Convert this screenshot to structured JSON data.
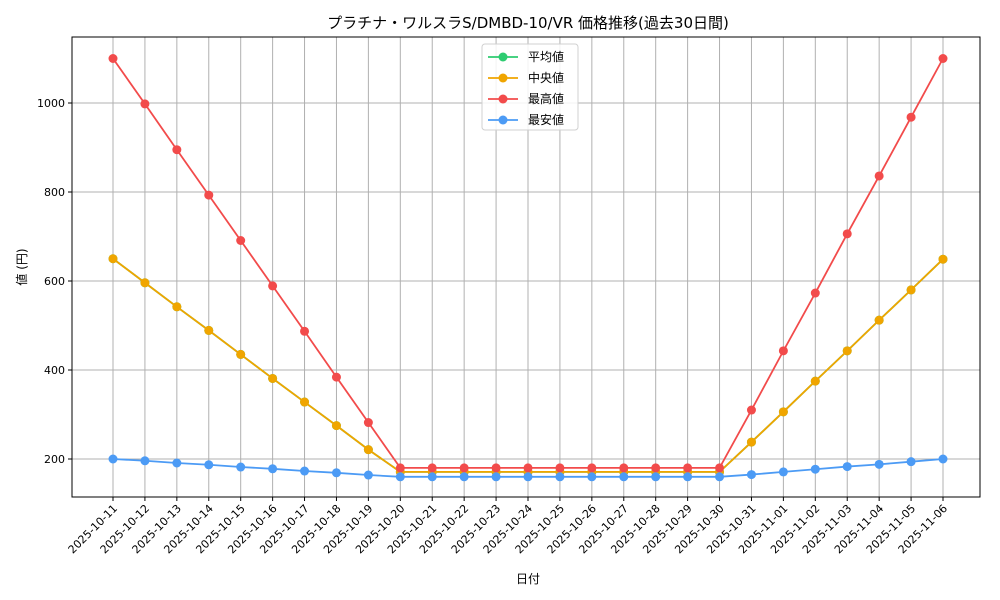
{
  "chart_data": {
    "type": "line",
    "title": "プラチナ・ワルスラS/DMBD-10/VR 価格推移(過去30日間)",
    "xlabel": "日付",
    "ylabel": "値 (円)",
    "ylim": [
      112,
      1145
    ],
    "yticks": [
      200,
      400,
      600,
      800,
      1000
    ],
    "grid": true,
    "legend_position": "upper center",
    "categories": [
      "2025-10-11",
      "2025-10-12",
      "2025-10-13",
      "2025-10-14",
      "2025-10-15",
      "2025-10-16",
      "2025-10-17",
      "2025-10-18",
      "2025-10-19",
      "2025-10-20",
      "2025-10-21",
      "2025-10-22",
      "2025-10-23",
      "2025-10-24",
      "2025-10-25",
      "2025-10-26",
      "2025-10-27",
      "2025-10-28",
      "2025-10-29",
      "2025-10-30",
      "2025-10-31",
      "2025-11-01",
      "2025-11-02",
      "2025-11-03",
      "2025-11-04",
      "2025-11-05",
      "2025-11-06"
    ],
    "series": [
      {
        "name": "平均値",
        "color": "#2ecc71",
        "values": [
          650,
          596,
          542,
          489,
          435,
          381,
          328,
          275,
          221,
          171,
          171,
          171,
          171,
          171,
          171,
          171,
          171,
          171,
          171,
          171,
          238,
          306,
          375,
          443,
          512,
          580,
          649
        ]
      },
      {
        "name": "中央値",
        "color": "#f0a500",
        "values": [
          650,
          596,
          542,
          489,
          435,
          381,
          328,
          275,
          221,
          171,
          171,
          171,
          171,
          171,
          171,
          171,
          171,
          171,
          171,
          171,
          238,
          306,
          375,
          443,
          512,
          580,
          649
        ]
      },
      {
        "name": "最高値",
        "color": "#f24b4b",
        "values": [
          1100,
          998,
          895,
          793,
          691,
          589,
          487,
          384,
          282,
          180,
          180,
          180,
          180,
          180,
          180,
          180,
          180,
          180,
          180,
          180,
          310,
          443,
          573,
          706,
          836,
          968,
          1100
        ]
      },
      {
        "name": "最安値",
        "color": "#4c9bf5",
        "values": [
          200,
          196,
          191,
          187,
          182,
          178,
          173,
          169,
          164,
          160,
          160,
          160,
          160,
          160,
          160,
          160,
          160,
          160,
          160,
          160,
          165,
          171,
          177,
          183,
          188,
          194,
          200
        ]
      }
    ]
  }
}
